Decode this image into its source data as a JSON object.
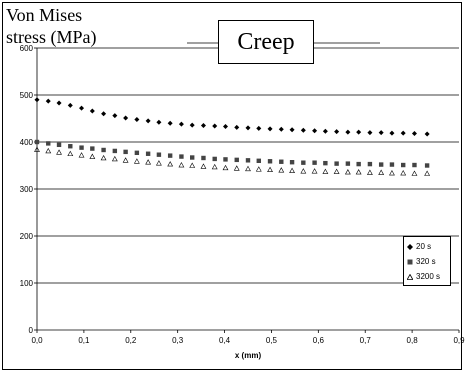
{
  "chart_data": {
    "type": "scatter",
    "title": "Creep",
    "xlabel": "x (mm)",
    "ylabel": "Von Mises stress (MPa)",
    "ylabel_lines": [
      "Von Mises",
      "stress (MPa)"
    ],
    "xlim": [
      0,
      0.9
    ],
    "ylim": [
      0,
      600
    ],
    "xticks": [
      "0,0",
      "0,1",
      "0,2",
      "0,3",
      "0,4",
      "0,5",
      "0,6",
      "0,7",
      "0,8",
      "0,9"
    ],
    "yticks": [
      "0",
      "100",
      "200",
      "300",
      "400",
      "500",
      "600"
    ],
    "grid": "horizontal",
    "legend_position": "right",
    "series": [
      {
        "name": "20 s",
        "marker": "diamond",
        "x": [
          0.0,
          0.024,
          0.047,
          0.071,
          0.095,
          0.118,
          0.142,
          0.166,
          0.189,
          0.213,
          0.237,
          0.26,
          0.284,
          0.308,
          0.331,
          0.355,
          0.379,
          0.402,
          0.426,
          0.45,
          0.473,
          0.497,
          0.521,
          0.544,
          0.568,
          0.592,
          0.615,
          0.639,
          0.663,
          0.686,
          0.71,
          0.734,
          0.757,
          0.781,
          0.805,
          0.832
        ],
        "y": [
          490,
          487,
          483,
          478,
          472,
          466,
          460,
          456,
          451,
          448,
          445,
          442,
          440,
          438,
          436,
          435,
          434,
          433,
          431,
          430,
          429,
          428,
          427,
          426,
          425,
          424,
          423,
          422,
          421,
          421,
          420,
          420,
          419,
          419,
          418,
          417
        ]
      },
      {
        "name": "320 s",
        "marker": "square",
        "x": [
          0.0,
          0.024,
          0.047,
          0.071,
          0.095,
          0.118,
          0.142,
          0.166,
          0.189,
          0.213,
          0.237,
          0.26,
          0.284,
          0.308,
          0.331,
          0.355,
          0.379,
          0.402,
          0.426,
          0.45,
          0.473,
          0.497,
          0.521,
          0.544,
          0.568,
          0.592,
          0.615,
          0.639,
          0.663,
          0.686,
          0.71,
          0.734,
          0.757,
          0.781,
          0.805,
          0.832
        ],
        "y": [
          400,
          397,
          394,
          391,
          388,
          386,
          383,
          381,
          379,
          377,
          375,
          373,
          371,
          369,
          367,
          366,
          364,
          363,
          362,
          361,
          360,
          359,
          358,
          357,
          356,
          356,
          355,
          354,
          354,
          353,
          353,
          352,
          352,
          351,
          351,
          350
        ]
      },
      {
        "name": "3200 s",
        "marker": "triangle",
        "x": [
          0.0,
          0.024,
          0.047,
          0.071,
          0.095,
          0.118,
          0.142,
          0.166,
          0.189,
          0.213,
          0.237,
          0.26,
          0.284,
          0.308,
          0.331,
          0.355,
          0.379,
          0.402,
          0.426,
          0.45,
          0.473,
          0.497,
          0.521,
          0.544,
          0.568,
          0.592,
          0.615,
          0.639,
          0.663,
          0.686,
          0.71,
          0.734,
          0.757,
          0.781,
          0.805,
          0.832
        ],
        "y": [
          384,
          381,
          378,
          375,
          372,
          369,
          366,
          364,
          361,
          359,
          357,
          355,
          353,
          351,
          350,
          348,
          347,
          345,
          344,
          343,
          342,
          341,
          340,
          339,
          338,
          338,
          337,
          337,
          336,
          336,
          335,
          335,
          334,
          334,
          333,
          333
        ]
      }
    ]
  }
}
